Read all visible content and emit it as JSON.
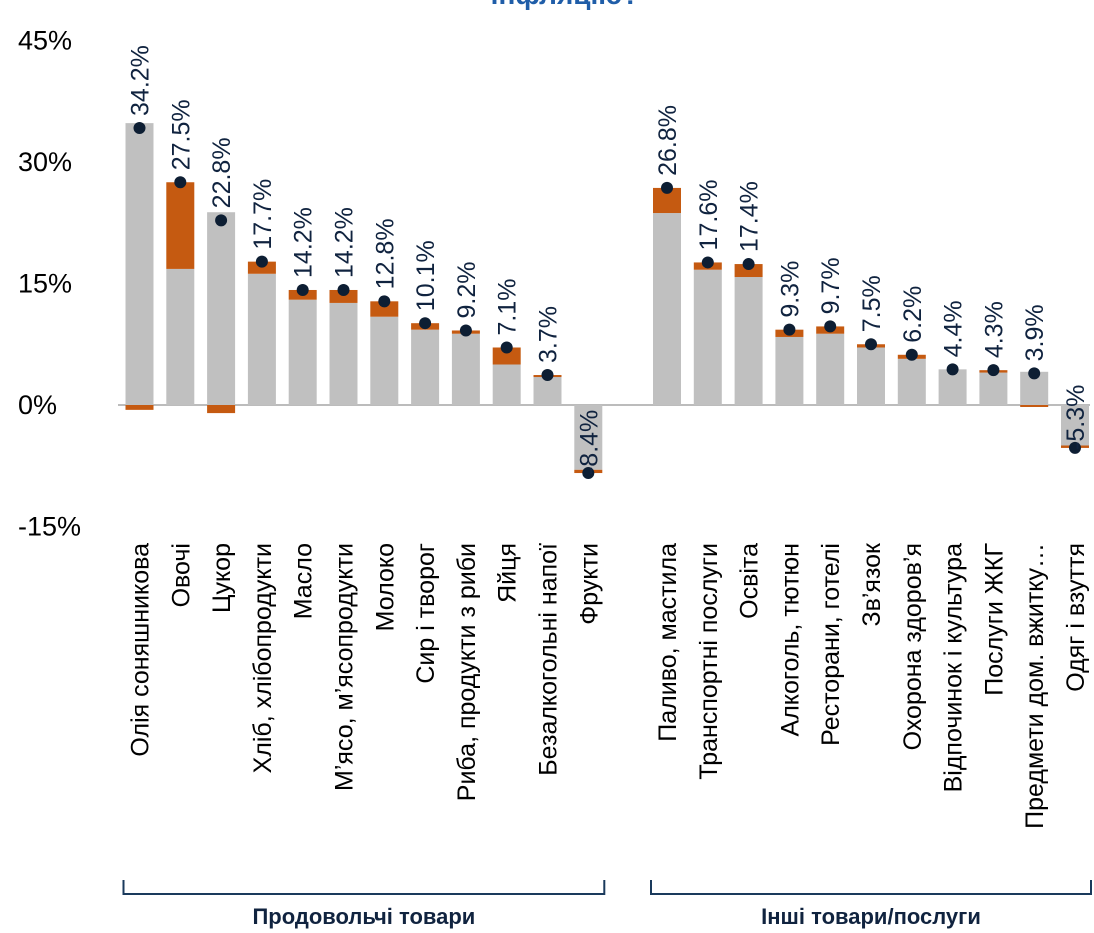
{
  "chart_data": {
    "type": "bar",
    "title": "інфляцію?",
    "ylim": [
      -15,
      45
    ],
    "yticks": [
      "45%",
      "30%",
      "15%",
      "0%",
      "-15%"
    ],
    "ytick_values": [
      45,
      30,
      15,
      0,
      -15
    ],
    "groups": [
      {
        "label": "Продовольчі товари",
        "categories": [
          "Олія соняшникова",
          "Овочі",
          "Цукор",
          "Хліб, хлібопродукти",
          "Масло",
          "М’ясо, м’ясопродукти",
          "Молоко",
          "Сир і творог",
          "Риба, продукти з риби",
          "Яйця",
          "Безалкогольні напої",
          "Фрукти"
        ],
        "grey_values": [
          34.8,
          16.8,
          23.8,
          16.2,
          13.0,
          12.6,
          10.9,
          9.3,
          8.8,
          5.0,
          3.6,
          -8.0
        ],
        "orange_values": [
          -0.6,
          10.7,
          -1.0,
          1.5,
          1.2,
          1.6,
          1.9,
          0.8,
          0.4,
          2.1,
          0.1,
          -0.4
        ],
        "dot_values": [
          34.2,
          27.5,
          22.8,
          17.7,
          14.2,
          14.2,
          12.8,
          10.1,
          9.2,
          7.1,
          3.7,
          -8.4
        ],
        "labels": [
          "34.2%",
          "27.5%",
          "22.8%",
          "17.7%",
          "14.2%",
          "14.2%",
          "12.8%",
          "10.1%",
          "9.2%",
          "7.1%",
          "3.7%",
          "-8.4%"
        ]
      },
      {
        "label": "Інші товари/послуги",
        "categories": [
          "Паливо, мастила",
          "Транспортні послуги",
          "Освіта",
          "Алкоголь, тютюн",
          "Ресторани, готелі",
          "Зв’язок",
          "Охорона здоров’я",
          "Відпочинок і культура",
          "Послуги ЖКГ",
          "Предмети дом. вжитку…",
          "Одяг і взуття"
        ],
        "grey_values": [
          23.7,
          16.7,
          15.8,
          8.4,
          8.8,
          7.1,
          5.7,
          4.4,
          4.0,
          4.1,
          -5.0
        ],
        "orange_values": [
          3.1,
          0.9,
          1.6,
          0.9,
          0.9,
          0.4,
          0.5,
          0.0,
          0.3,
          -0.2,
          -0.3
        ],
        "dot_values": [
          26.8,
          17.6,
          17.4,
          9.3,
          9.7,
          7.5,
          6.2,
          4.4,
          4.3,
          3.9,
          -5.3
        ],
        "labels": [
          "26.8%",
          "17.6%",
          "17.4%",
          "9.3%",
          "9.7%",
          "7.5%",
          "6.2%",
          "4.4%",
          "4.3%",
          "3.9%",
          "-5.3%"
        ]
      }
    ],
    "colors": {
      "grey": "#c0c0c0",
      "orange": "#c55a11",
      "dot": "#0d1e33",
      "axis": "#a6a6a6",
      "bracket": "#1a3a5c",
      "title": "#1f5da8"
    },
    "grid": false,
    "legend": "none"
  }
}
